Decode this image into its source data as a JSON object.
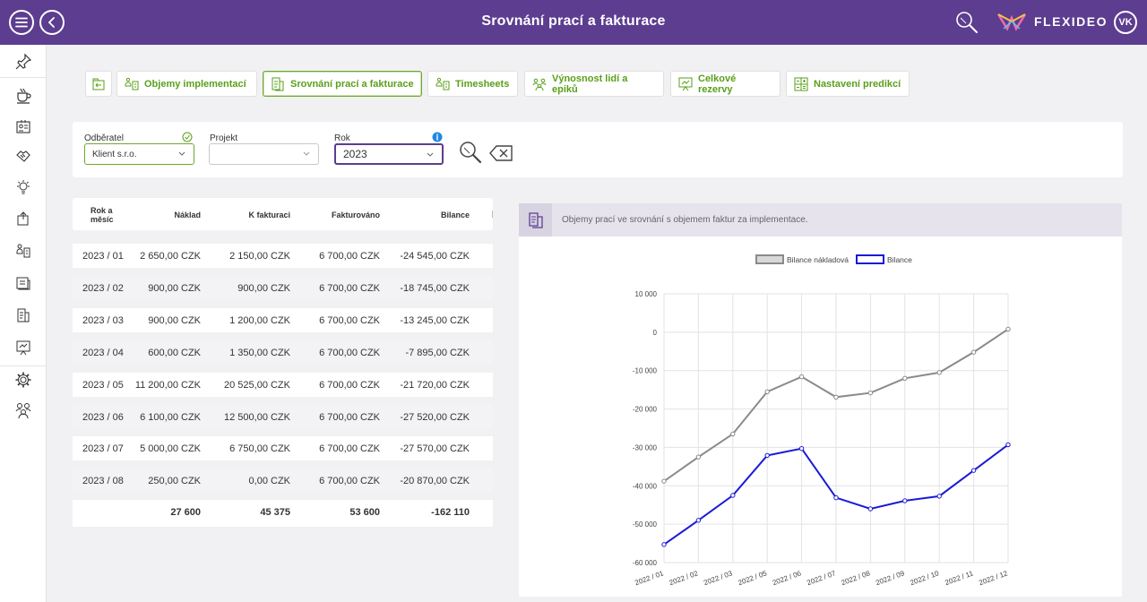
{
  "header": {
    "title": "Srovnání prací a fakturace",
    "brand": "FLEXIDEO",
    "user_initials": "VK"
  },
  "colors": {
    "header_bg": "#5c3d8f",
    "accent_green": "#5a9f1a",
    "series_gray": "#8a8a8a",
    "series_blue": "#1a1ad6"
  },
  "tabs": [
    {
      "label": ""
    },
    {
      "label": "Objemy implementací"
    },
    {
      "label": "Srovnání prací a fakturace",
      "active": true
    },
    {
      "label": "Timesheets"
    },
    {
      "label": "Výnosnost lidí a epiků"
    },
    {
      "label": "Celkové rezervy"
    },
    {
      "label": "Nastavení predikcí"
    }
  ],
  "filters": {
    "customer": {
      "label": "Odběratel",
      "value": "Klient s.r.o."
    },
    "project": {
      "label": "Projekt",
      "value": ""
    },
    "year": {
      "label": "Rok",
      "value": "2023"
    }
  },
  "table": {
    "headers": {
      "month": "Rok a měsíc",
      "cost": "Náklad",
      "to_invoice": "K fakturaci",
      "invoiced": "Fakturováno",
      "balance": "Bilance"
    },
    "rows": [
      {
        "month": "2023 / 01",
        "cost": "2 650,00 CZK",
        "to_invoice": "2 150,00 CZK",
        "invoiced": "6 700,00 CZK",
        "balance": "-24 545,00 CZK"
      },
      {
        "month": "2023 / 02",
        "cost": "900,00 CZK",
        "to_invoice": "900,00 CZK",
        "invoiced": "6 700,00 CZK",
        "balance": "-18 745,00 CZK"
      },
      {
        "month": "2023 / 03",
        "cost": "900,00 CZK",
        "to_invoice": "1 200,00 CZK",
        "invoiced": "6 700,00 CZK",
        "balance": "-13 245,00 CZK"
      },
      {
        "month": "2023 / 04",
        "cost": "600,00 CZK",
        "to_invoice": "1 350,00 CZK",
        "invoiced": "6 700,00 CZK",
        "balance": "-7 895,00 CZK"
      },
      {
        "month": "2023 / 05",
        "cost": "11 200,00 CZK",
        "to_invoice": "20 525,00 CZK",
        "invoiced": "6 700,00 CZK",
        "balance": "-21 720,00 CZK"
      },
      {
        "month": "2023 / 06",
        "cost": "6 100,00 CZK",
        "to_invoice": "12 500,00 CZK",
        "invoiced": "6 700,00 CZK",
        "balance": "-27 520,00 CZK"
      },
      {
        "month": "2023 / 07",
        "cost": "5 000,00 CZK",
        "to_invoice": "6 750,00 CZK",
        "invoiced": "6 700,00 CZK",
        "balance": "-27 570,00 CZK"
      },
      {
        "month": "2023 / 08",
        "cost": "250,00 CZK",
        "to_invoice": "0,00 CZK",
        "invoiced": "6 700,00 CZK",
        "balance": "-20 870,00 CZK"
      }
    ],
    "totals": {
      "cost": "27 600",
      "to_invoice": "45 375",
      "invoiced": "53 600",
      "balance": "-162 110"
    }
  },
  "chart_panel": {
    "caption": "Objemy prací ve srovnání s objemem faktur za implementace."
  },
  "chart_data": {
    "type": "line",
    "categories": [
      "2022 / 01",
      "2022 / 02",
      "2022 / 03",
      "2022 / 05",
      "2022 / 06",
      "2022 / 07",
      "2022 / 08",
      "2022 / 09",
      "2022 / 10",
      "2022 / 11",
      "2022 / 12"
    ],
    "series": [
      {
        "name": "Bilance nákladová",
        "color": "#8a8a8a",
        "values": [
          -38800,
          -32500,
          -26500,
          -15500,
          -11600,
          -16900,
          -15800,
          -12000,
          -10500,
          -5200,
          800
        ]
      },
      {
        "name": "Bilance",
        "color": "#1a1ad6",
        "values": [
          -55300,
          -49000,
          -42500,
          -32100,
          -30300,
          -43100,
          -46000,
          -43900,
          -42700,
          -36000,
          -29300
        ]
      }
    ],
    "yticks": [
      "10 000",
      "0",
      "-10 000",
      "-20 000",
      "-30 000",
      "-40 000",
      "-50 000",
      "-60 000"
    ],
    "ylim": [
      -60000,
      10000
    ],
    "legend": "top",
    "grid": true
  }
}
